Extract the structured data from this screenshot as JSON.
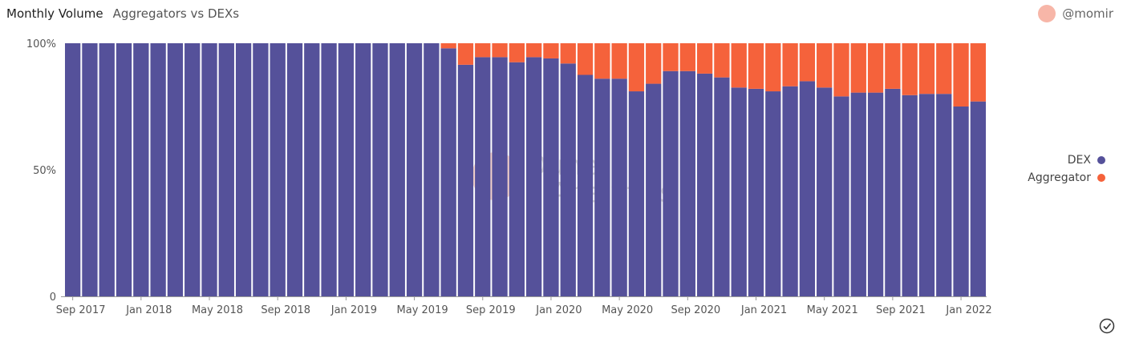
{
  "header": {
    "title": "Monthly Volume",
    "subtitle": "Aggregators vs DEXs"
  },
  "author": {
    "handle": "@momir"
  },
  "watermark": {
    "line1": "Dune",
    "line2": "Analytics"
  },
  "colors": {
    "dex": "#55519a",
    "aggregator": "#f5623b"
  },
  "chart_data": {
    "type": "bar",
    "stacked": true,
    "normalized": true,
    "months": [
      "2017-09",
      "2017-10",
      "2017-11",
      "2017-12",
      "2018-01",
      "2018-02",
      "2018-03",
      "2018-04",
      "2018-05",
      "2018-06",
      "2018-07",
      "2018-08",
      "2018-09",
      "2018-10",
      "2018-11",
      "2018-12",
      "2019-01",
      "2019-02",
      "2019-03",
      "2019-04",
      "2019-05",
      "2019-06",
      "2019-07",
      "2019-08",
      "2019-09",
      "2019-10",
      "2019-11",
      "2019-12",
      "2020-01",
      "2020-02",
      "2020-03",
      "2020-04",
      "2020-05",
      "2020-06",
      "2020-07",
      "2020-08",
      "2020-09",
      "2020-10",
      "2020-11",
      "2020-12",
      "2021-01",
      "2021-02",
      "2021-03",
      "2021-04",
      "2021-05",
      "2021-06",
      "2021-07",
      "2021-08",
      "2021-09",
      "2021-10",
      "2021-11",
      "2021-12",
      "2022-01",
      "2022-02"
    ],
    "xtick_labels": [
      "Sep 2017",
      "Jan 2018",
      "May 2018",
      "Sep 2018",
      "Jan 2019",
      "May 2019",
      "Sep 2019",
      "Jan 2020",
      "May 2020",
      "Sep 2020",
      "Jan 2021",
      "May 2021",
      "Sep 2021",
      "Jan 2022"
    ],
    "ytick_labels": [
      "0",
      "50%",
      "100%"
    ],
    "ylim": [
      0,
      100
    ],
    "legend_position": "right",
    "series": [
      {
        "name": "DEX",
        "values": [
          100,
          100,
          100,
          100,
          100,
          100,
          100,
          100,
          100,
          100,
          100,
          100,
          100,
          100,
          100,
          100,
          100,
          100,
          100,
          100,
          100,
          100,
          98,
          91.5,
          94.5,
          94.5,
          92.5,
          94.5,
          94,
          92,
          87.5,
          86,
          86,
          81,
          84,
          89,
          89,
          88,
          86.5,
          82.5,
          82,
          81,
          83,
          85,
          82.5,
          79,
          80.5,
          80.5,
          82,
          79.5,
          80,
          80,
          75,
          77
        ]
      },
      {
        "name": "Aggregator",
        "values": [
          0,
          0,
          0,
          0,
          0,
          0,
          0,
          0,
          0,
          0,
          0,
          0,
          0,
          0,
          0,
          0,
          0,
          0,
          0,
          0,
          0,
          0,
          2,
          8.5,
          5.5,
          5.5,
          7.5,
          5.5,
          6,
          8,
          12.5,
          14,
          14,
          19,
          16,
          11,
          11,
          12,
          13.5,
          17.5,
          18,
          19,
          17,
          15,
          17.5,
          21,
          19.5,
          19.5,
          18,
          20.5,
          20,
          20,
          25,
          23
        ]
      }
    ]
  }
}
